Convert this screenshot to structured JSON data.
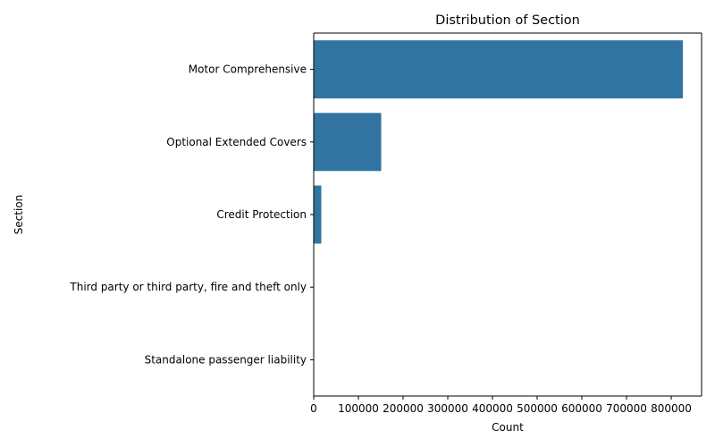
{
  "chart_data": {
    "type": "bar",
    "orientation": "horizontal",
    "title": "Distribution of Section",
    "xlabel": "Count",
    "ylabel": "Section",
    "categories": [
      "Motor Comprehensive",
      "Optional Extended Covers",
      "Credit Protection",
      "Third party or third party, fire and theft only",
      "Standalone passenger liability"
    ],
    "values": [
      826000,
      151000,
      17000,
      700,
      150
    ],
    "xlim": [
      0,
      868000
    ],
    "xticks": [
      0,
      100000,
      200000,
      300000,
      400000,
      500000,
      600000,
      700000,
      800000
    ],
    "bar_color": "#3274a1",
    "grid": false
  }
}
